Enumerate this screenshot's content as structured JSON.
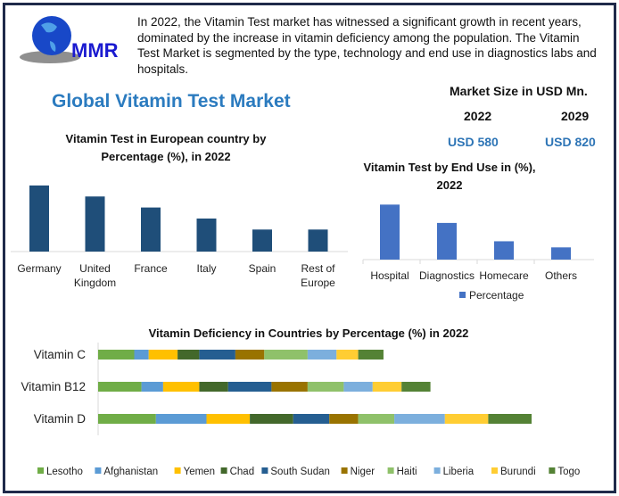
{
  "logo": {
    "text": "MMR"
  },
  "intro": "In 2022, the Vitamin Test market has witnessed a significant growth in recent years, dominated by the increase in vitamin deficiency among the population. The Vitamin Test Market is segmented by the type, technology and end use in diagnostics labs and hospitals.",
  "main_title": "Global Vitamin Test Market",
  "market_size": {
    "label": "Market Size in USD Mn.",
    "years": [
      "2022",
      "2029"
    ],
    "values": [
      "USD 580",
      "USD 820"
    ]
  },
  "colors": {
    "european": "#1f4e79",
    "end_use": "#4472c4",
    "title": "#2b7bbf"
  },
  "chart_data": [
    {
      "type": "bar",
      "title": "Vitamin Test in European country by Percentage (%), in 2022",
      "categories": [
        "Germany",
        "United Kingdom",
        "France",
        "Italy",
        "Spain",
        "Rest of Europe"
      ],
      "values": [
        30,
        25,
        20,
        15,
        10,
        10
      ]
    },
    {
      "type": "bar",
      "title": "Vitamin Test by End Use in (%), 2022",
      "categories": [
        "Hospital",
        "Diagnostics",
        "Homecare",
        "Others"
      ],
      "series": [
        {
          "name": "Percentage",
          "values": [
            45,
            30,
            15,
            10
          ]
        }
      ],
      "legend": "bottom"
    },
    {
      "type": "bar",
      "orientation": "horizontal",
      "stacked": true,
      "title": "Vitamin Deficiency in Countries by Percentage (%) in 2022",
      "categories": [
        "Vitamin C",
        "Vitamin B12",
        "Vitamin D"
      ],
      "series": [
        {
          "name": "Lesotho",
          "color": "#70ad47",
          "values": [
            5,
            6,
            8
          ]
        },
        {
          "name": "Afghanistan",
          "color": "#5b9bd5",
          "values": [
            2,
            3,
            7
          ]
        },
        {
          "name": "Yemen",
          "color": "#ffc000",
          "values": [
            4,
            5,
            6
          ]
        },
        {
          "name": "Chad",
          "color": "#43682b",
          "values": [
            3,
            4,
            6
          ]
        },
        {
          "name": "South Sudan",
          "color": "#255e91",
          "values": [
            5,
            6,
            5
          ]
        },
        {
          "name": "Niger",
          "color": "#997300",
          "values": [
            4,
            5,
            4
          ]
        },
        {
          "name": "Haiti",
          "color": "#8fc16a",
          "values": [
            6,
            5,
            5
          ]
        },
        {
          "name": "Liberia",
          "color": "#7cafdd",
          "values": [
            4,
            4,
            7
          ]
        },
        {
          "name": "Burundi",
          "color": "#ffcd33",
          "values": [
            3,
            4,
            6
          ]
        },
        {
          "name": "Togo",
          "color": "#548235",
          "values": [
            3.5,
            4,
            6
          ]
        }
      ],
      "legend": "bottom"
    }
  ]
}
